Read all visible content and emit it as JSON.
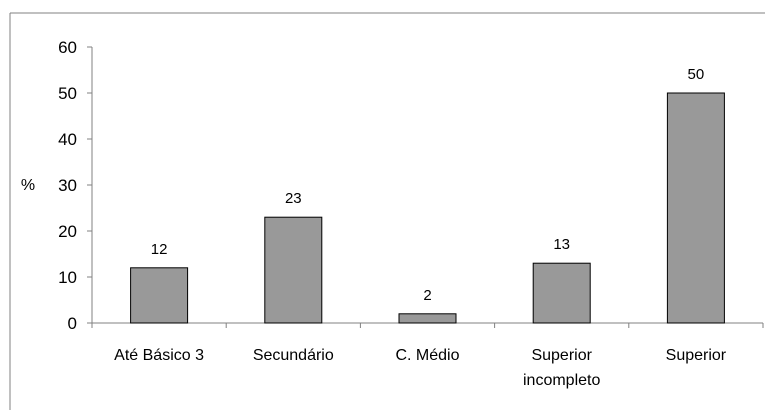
{
  "chart_data": {
    "type": "bar",
    "title": "",
    "xlabel": "",
    "ylabel": "%",
    "ylim": [
      0,
      60
    ],
    "yticks": [
      0,
      10,
      20,
      30,
      40,
      50,
      60
    ],
    "grid": false,
    "legend": "none",
    "categories": [
      [
        "Até Básico 3"
      ],
      [
        "Secundário"
      ],
      [
        "C. Médio"
      ],
      [
        "Superior",
        "incompleto"
      ],
      [
        "Superior"
      ]
    ],
    "values": [
      12,
      23,
      2,
      13,
      50
    ],
    "bar_color": "#999999",
    "bar_edge_color": "#000000",
    "frame_color": "#808080"
  }
}
